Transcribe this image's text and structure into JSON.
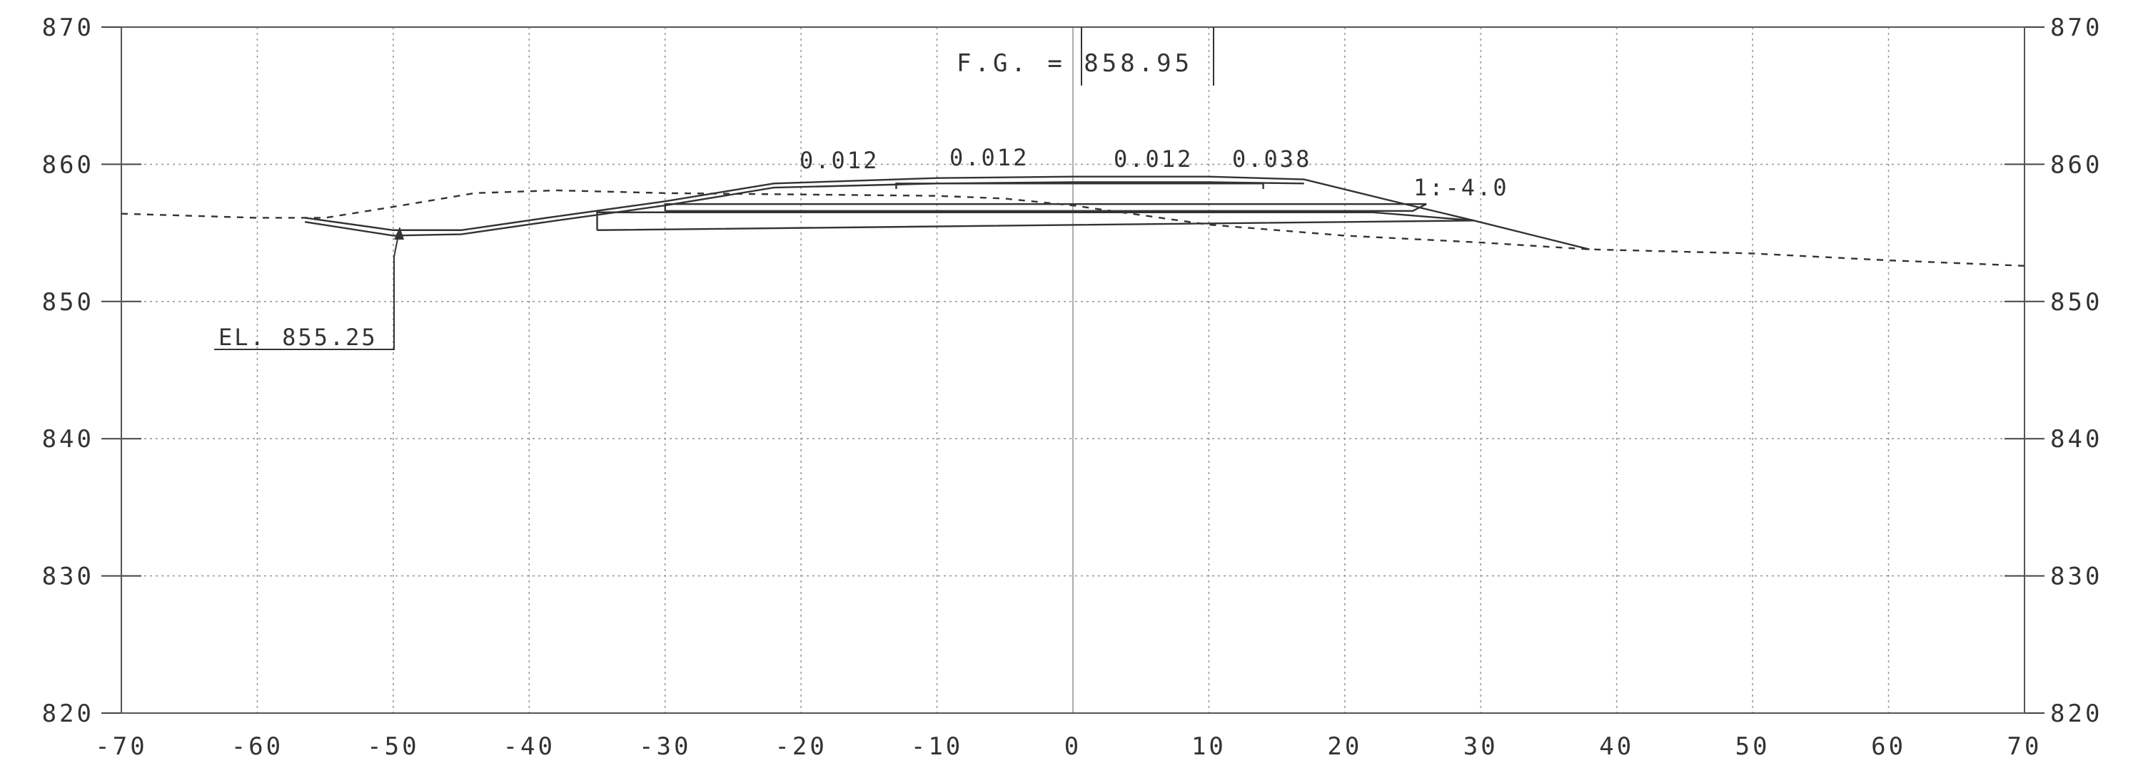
{
  "chart_data": {
    "type": "cross-section",
    "xlim": [
      -70,
      70
    ],
    "ylim": [
      820,
      870
    ],
    "grid": true,
    "x_ticks": [
      "-70",
      "-60",
      "-50",
      "-40",
      "-30",
      "-20",
      "-10",
      "0",
      "10",
      "20",
      "30",
      "40",
      "50",
      "60",
      "70"
    ],
    "y_ticks": [
      "820",
      "830",
      "840",
      "850",
      "860",
      "870"
    ],
    "title": "F.G. = 858.95",
    "annotations": {
      "el_label": "EL. 855.25",
      "slope_1": "0.012",
      "slope_2": "0.012",
      "slope_3": "0.012",
      "slope_4": "0.038",
      "side_slope": "1:-4.0"
    },
    "existing_ground": [
      [
        -70,
        856.4
      ],
      [
        -60,
        856.1
      ],
      [
        -55,
        856.1
      ],
      [
        -50,
        856.9
      ],
      [
        -44,
        857.9
      ],
      [
        -38,
        858.1
      ],
      [
        -30,
        857.9
      ],
      [
        -20,
        857.8
      ],
      [
        -10,
        857.7
      ],
      [
        -5,
        857.5
      ],
      [
        0,
        857.0
      ],
      [
        5,
        856.3
      ],
      [
        10,
        855.6
      ],
      [
        20,
        854.8
      ],
      [
        30,
        854.3
      ],
      [
        38,
        853.8
      ],
      [
        50,
        853.5
      ],
      [
        60,
        853.0
      ],
      [
        70,
        852.6
      ]
    ],
    "proposed_section": [
      [
        -56.5,
        856.1
      ],
      [
        -50,
        855.2
      ],
      [
        -45,
        855.2
      ],
      [
        -38,
        856.2
      ],
      [
        -30,
        857.3
      ],
      [
        -22,
        858.6
      ],
      [
        -10,
        859.0
      ],
      [
        0,
        859.1
      ],
      [
        10,
        859.1
      ],
      [
        17,
        858.9
      ],
      [
        24,
        857.2
      ],
      [
        29.5,
        855.9
      ],
      [
        38,
        853.8
      ]
    ]
  }
}
